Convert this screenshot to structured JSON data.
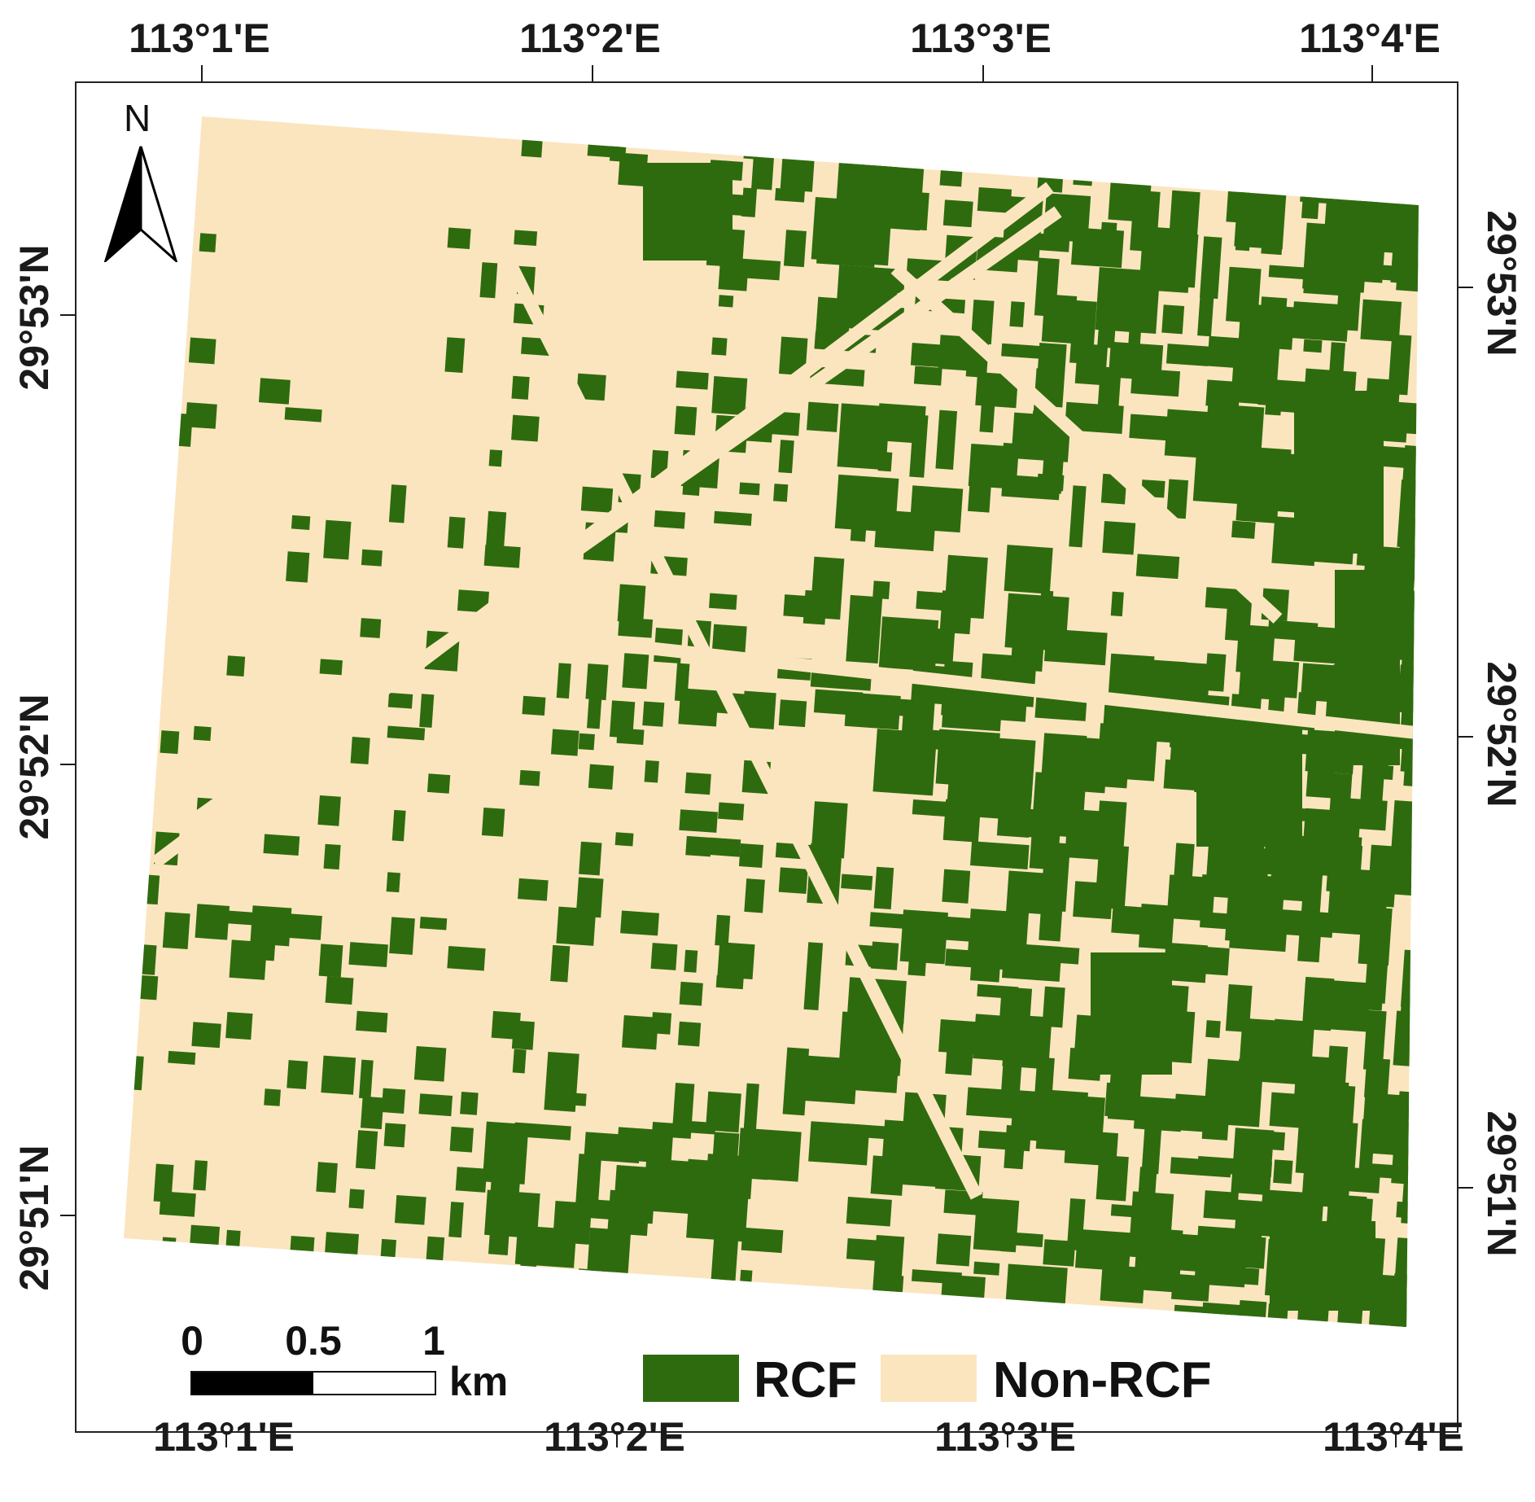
{
  "colors": {
    "rcf": "#2e6b0e",
    "non_rcf": "#fbe5bf",
    "frame": "#222222"
  },
  "longitude_labels_top": [
    "113°1'E",
    "113°2'E",
    "113°3'E",
    "113°4'E"
  ],
  "longitude_labels_bottom": [
    "113°1'E",
    "113°2'E",
    "113°3'E",
    "113°4'E"
  ],
  "latitude_labels_left": [
    "29°53'N",
    "29°52'N",
    "29°51'N"
  ],
  "latitude_labels_right": [
    "29°53'N",
    "29°52'N",
    "29°51'N"
  ],
  "north_arrow": {
    "label": "N"
  },
  "scale_bar": {
    "ticks": [
      "0",
      "0.5",
      "1"
    ],
    "unit": "km"
  },
  "legend": [
    {
      "label": "RCF",
      "color": "#2e6b0e"
    },
    {
      "label": "Non-RCF",
      "color": "#fbe5bf"
    }
  ]
}
